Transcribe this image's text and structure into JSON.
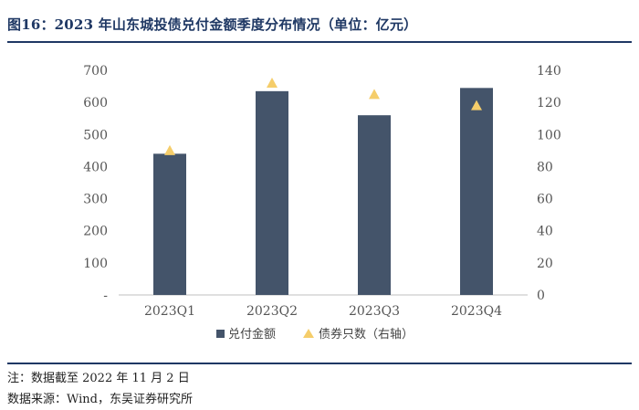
{
  "figure": {
    "title": "图16：2023 年山东城投债兑付金额季度分布情况（单位：亿元）"
  },
  "chart_data": {
    "type": "bar",
    "categories": [
      "2023Q1",
      "2023Q2",
      "2023Q3",
      "2023Q4"
    ],
    "series": [
      {
        "name": "兑付金额",
        "type": "bar",
        "axis": "left",
        "values": [
          440,
          635,
          560,
          645
        ]
      },
      {
        "name": "债券只数（右轴）",
        "type": "scatter",
        "marker": "triangle",
        "axis": "right",
        "values": [
          90,
          132,
          125,
          118
        ]
      }
    ],
    "ylim": [
      0,
      700
    ],
    "y2lim": [
      0,
      140
    ],
    "y_ticks": [
      "-",
      "100",
      "200",
      "300",
      "400",
      "500",
      "600",
      "700"
    ],
    "y2_ticks": [
      "0",
      "20",
      "40",
      "60",
      "80",
      "100",
      "120",
      "140"
    ],
    "legend_position": "bottom",
    "colors": {
      "bar": "#44546a",
      "marker": "#f5cd6a",
      "axis": "#bfbfbf"
    }
  },
  "footer": {
    "note": "注：数据截至 2022 年 11 月 2 日",
    "source": "数据来源：Wind，东吴证券研究所"
  }
}
